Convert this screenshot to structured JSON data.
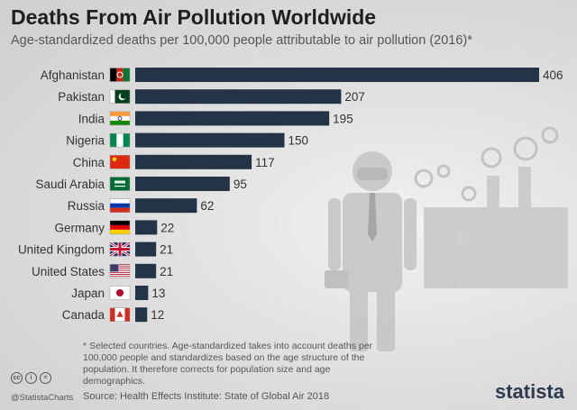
{
  "title": "Deaths From Air Pollution Worldwide",
  "subtitle": "Age-standardized deaths per 100,000 people attributable to air pollution (2016)*",
  "footnote": "* Selected countries. Age-standardized takes into account deaths per 100,000 people and standardizes based on the age structure of the population. It therefore corrects for population size and age demographics.",
  "source": "Source: Health Effects Institute: State of Global Air 2018",
  "handle": "@StatistaCharts",
  "logo": "statista",
  "license_icons": [
    "creative-commons-icon",
    "attribution-icon",
    "no-derivatives-icon"
  ],
  "colors": {
    "bar": "#243447",
    "text": "#333333"
  },
  "chart_data": {
    "type": "bar",
    "orientation": "horizontal",
    "categories": [
      "Afghanistan",
      "Pakistan",
      "India",
      "Nigeria",
      "China",
      "Saudi Arabia",
      "Russia",
      "Germany",
      "United Kingdom",
      "United States",
      "Japan",
      "Canada"
    ],
    "values": [
      406,
      207,
      195,
      150,
      117,
      95,
      62,
      22,
      21,
      21,
      13,
      12
    ],
    "flags": [
      "flag-afghanistan",
      "flag-pakistan",
      "flag-india",
      "flag-nigeria",
      "flag-china",
      "flag-saudi-arabia",
      "flag-russia",
      "flag-germany",
      "flag-united-kingdom",
      "flag-united-states",
      "flag-japan",
      "flag-canada"
    ],
    "xlim": [
      0,
      406
    ],
    "grid": false,
    "data_labels": true
  }
}
